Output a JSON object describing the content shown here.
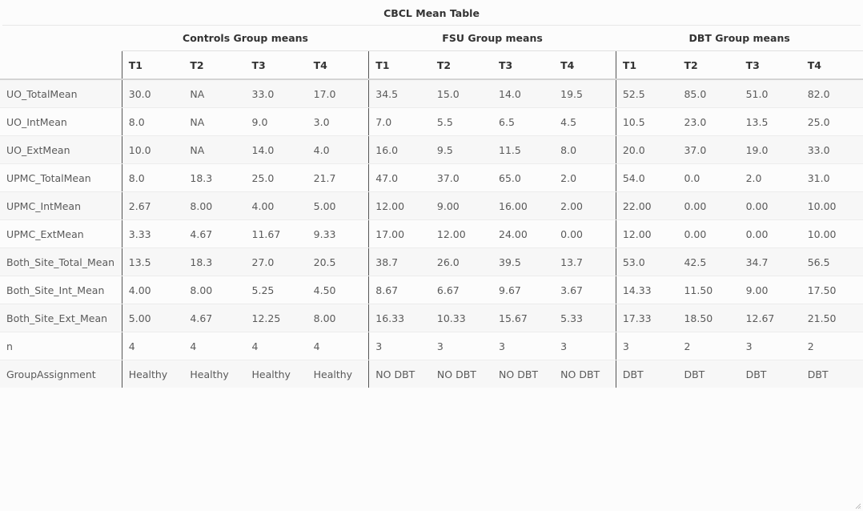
{
  "title": "CBCL Mean Table",
  "groups": [
    {
      "label": "Controls Group means"
    },
    {
      "label": "FSU Group means"
    },
    {
      "label": "DBT Group means"
    }
  ],
  "columns": [
    "T1",
    "T2",
    "T3",
    "T4",
    "T1",
    "T2",
    "T3",
    "T4",
    "T1",
    "T2",
    "T3",
    "T4"
  ],
  "rows": [
    {
      "label": "UO_TotalMean",
      "cells": [
        "30.0",
        "NA",
        "33.0",
        "17.0",
        "34.5",
        "15.0",
        "14.0",
        "19.5",
        "52.5",
        "85.0",
        "51.0",
        "82.0"
      ]
    },
    {
      "label": "UO_IntMean",
      "cells": [
        "8.0",
        "NA",
        "9.0",
        "3.0",
        "7.0",
        "5.5",
        "6.5",
        "4.5",
        "10.5",
        "23.0",
        "13.5",
        "25.0"
      ]
    },
    {
      "label": "UO_ExtMean",
      "cells": [
        "10.0",
        "NA",
        "14.0",
        "4.0",
        "16.0",
        "9.5",
        "11.5",
        "8.0",
        "20.0",
        "37.0",
        "19.0",
        "33.0"
      ]
    },
    {
      "label": "UPMC_TotalMean",
      "cells": [
        "8.0",
        "18.3",
        "25.0",
        "21.7",
        "47.0",
        "37.0",
        "65.0",
        "2.0",
        "54.0",
        "0.0",
        "2.0",
        "31.0"
      ]
    },
    {
      "label": "UPMC_IntMean",
      "cells": [
        "2.67",
        "8.00",
        "4.00",
        "5.00",
        "12.00",
        "9.00",
        "16.00",
        "2.00",
        "22.00",
        "0.00",
        "0.00",
        "10.00"
      ]
    },
    {
      "label": "UPMC_ExtMean",
      "cells": [
        "3.33",
        "4.67",
        "11.67",
        "9.33",
        "17.00",
        "12.00",
        "24.00",
        "0.00",
        "12.00",
        "0.00",
        "0.00",
        "10.00"
      ]
    },
    {
      "label": "Both_Site_Total_Mean",
      "cells": [
        "13.5",
        "18.3",
        "27.0",
        "20.5",
        "38.7",
        "26.0",
        "39.5",
        "13.7",
        "53.0",
        "42.5",
        "34.7",
        "56.5"
      ]
    },
    {
      "label": "Both_Site_Int_Mean",
      "cells": [
        "4.00",
        "8.00",
        "5.25",
        "4.50",
        "8.67",
        "6.67",
        "9.67",
        "3.67",
        "14.33",
        "11.50",
        "9.00",
        "17.50"
      ]
    },
    {
      "label": "Both_Site_Ext_Mean",
      "cells": [
        "5.00",
        "4.67",
        "12.25",
        "8.00",
        "16.33",
        "10.33",
        "15.67",
        "5.33",
        "17.33",
        "18.50",
        "12.67",
        "21.50"
      ]
    },
    {
      "label": "n",
      "cells": [
        "4",
        "4",
        "4",
        "4",
        "3",
        "3",
        "3",
        "3",
        "3",
        "2",
        "3",
        "2"
      ]
    },
    {
      "label": "GroupAssignment",
      "cells": [
        "Healthy",
        "Healthy",
        "Healthy",
        "Healthy",
        "NO DBT",
        "NO DBT",
        "NO DBT",
        "NO DBT",
        "DBT",
        "DBT",
        "DBT",
        "DBT"
      ]
    }
  ],
  "icons": {
    "resize_handle": "resize-grip-icon"
  }
}
